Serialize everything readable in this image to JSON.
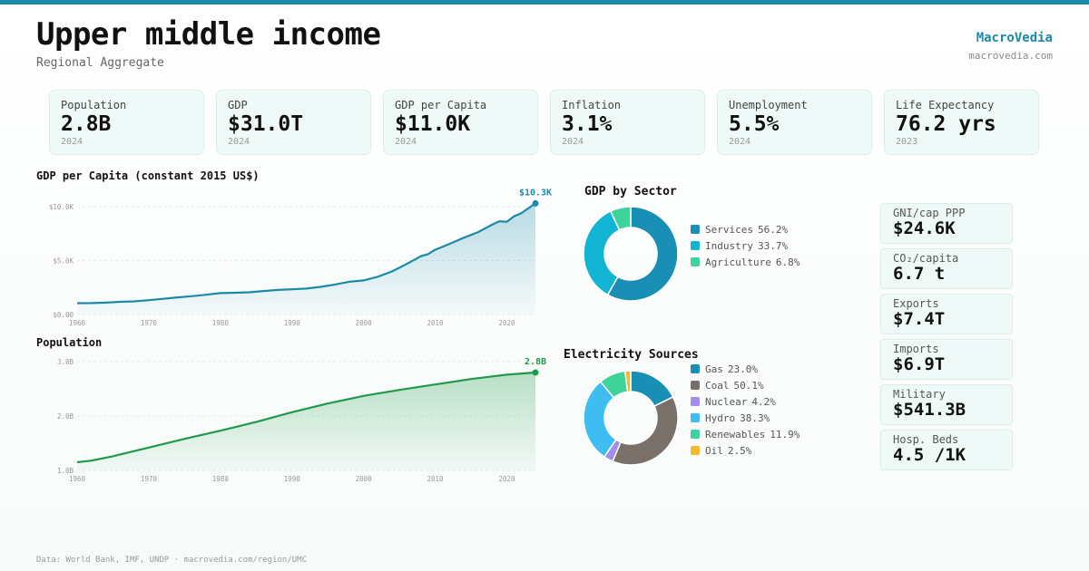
{
  "header": {
    "title": "Upper middle income",
    "subtitle": "Regional Aggregate",
    "brand": "MacroVedia",
    "brand_url": "macrovedia.com"
  },
  "colors": {
    "accent": "#1a8aa8",
    "gdp_line": "#1a8aa8",
    "population_line": "#1f9a4a"
  },
  "kpis": [
    {
      "label": "Population",
      "value": "2.8B",
      "year": "2024"
    },
    {
      "label": "GDP",
      "value": "$31.0T",
      "year": "2024"
    },
    {
      "label": "GDP per Capita",
      "value": "$11.0K",
      "year": "2024"
    },
    {
      "label": "Inflation",
      "value": "3.1%",
      "year": "2024"
    },
    {
      "label": "Unemployment",
      "value": "5.5%",
      "year": "2024"
    },
    {
      "label": "Life Expectancy",
      "value": "76.2 yrs",
      "year": "2023"
    }
  ],
  "stats": [
    {
      "label": "GNI/cap PPP",
      "value": "$24.6K"
    },
    {
      "label": "CO₂/capita",
      "value": "6.7 t"
    },
    {
      "label": "Exports",
      "value": "$7.4T"
    },
    {
      "label": "Imports",
      "value": "$6.9T"
    },
    {
      "label": "Military",
      "value": "$541.3B"
    },
    {
      "label": "Hosp. Beds",
      "value": "4.5 /1K"
    }
  ],
  "footer": "Data: World Bank, IMF, UNDP · macrovedia.com/region/UMC",
  "chart_data": [
    {
      "type": "area",
      "title": "GDP per Capita (constant 2015 US$)",
      "end_label": "$10.3K",
      "x": [
        1960,
        1962,
        1964,
        1966,
        1968,
        1970,
        1972,
        1974,
        1976,
        1978,
        1980,
        1982,
        1984,
        1986,
        1988,
        1990,
        1992,
        1994,
        1996,
        1998,
        2000,
        2002,
        2004,
        2006,
        2008,
        2009,
        2010,
        2012,
        2014,
        2016,
        2018,
        2019,
        2020,
        2021,
        2022,
        2024
      ],
      "values": [
        1050,
        1060,
        1100,
        1180,
        1220,
        1330,
        1450,
        1590,
        1700,
        1830,
        1980,
        2020,
        2060,
        2180,
        2280,
        2340,
        2400,
        2560,
        2780,
        3030,
        3160,
        3500,
        4000,
        4680,
        5400,
        5600,
        6000,
        6550,
        7120,
        7640,
        8350,
        8650,
        8600,
        9100,
        9380,
        10300
      ],
      "xlim": [
        1960,
        2024
      ],
      "ylim": [
        0,
        10000
      ],
      "x_ticks": [
        "1960",
        "1970",
        "1980",
        "1990",
        "2000",
        "2010",
        "2020"
      ],
      "y_ticks": [
        "$0.00",
        "$5.0K",
        "$10.0K"
      ],
      "grid": true
    },
    {
      "type": "area",
      "title": "Population",
      "end_label": "2.8B",
      "x": [
        1960,
        1962,
        1965,
        1970,
        1975,
        1980,
        1985,
        1990,
        1995,
        2000,
        2005,
        2010,
        2015,
        2020,
        2024
      ],
      "values": [
        1.15,
        1.18,
        1.26,
        1.42,
        1.58,
        1.73,
        1.89,
        2.07,
        2.23,
        2.37,
        2.48,
        2.58,
        2.68,
        2.76,
        2.8
      ],
      "xlim": [
        1960,
        2024
      ],
      "ylim": [
        1.0,
        3.0
      ],
      "x_ticks": [
        "1960",
        "1970",
        "1980",
        "1990",
        "2000",
        "2010",
        "2020"
      ],
      "y_ticks": [
        "1.0B",
        "2.0B",
        "3.0B"
      ],
      "grid": true
    },
    {
      "type": "pie",
      "title": "GDP by Sector",
      "categories": [
        "Services",
        "Industry",
        "Agriculture"
      ],
      "values": [
        56.2,
        33.7,
        6.8
      ],
      "value_labels": [
        "56.2%",
        "33.7%",
        "6.8%"
      ],
      "colors": [
        "#1a8fb5",
        "#12b4d4",
        "#3dd39b"
      ],
      "legend_position": "right"
    },
    {
      "type": "pie",
      "title": "Electricity Sources",
      "categories": [
        "Gas",
        "Coal",
        "Nuclear",
        "Hydro",
        "Renewables",
        "Oil"
      ],
      "values": [
        23.0,
        50.1,
        4.2,
        38.3,
        11.9,
        2.5
      ],
      "value_labels": [
        "23.0%",
        "50.1%",
        "4.2%",
        "38.3%",
        "11.9%",
        "2.5%"
      ],
      "colors": [
        "#1a8fb5",
        "#7a706a",
        "#a58bf0",
        "#3dbdf0",
        "#3dd39b",
        "#f5b82e"
      ],
      "legend_position": "right"
    }
  ]
}
